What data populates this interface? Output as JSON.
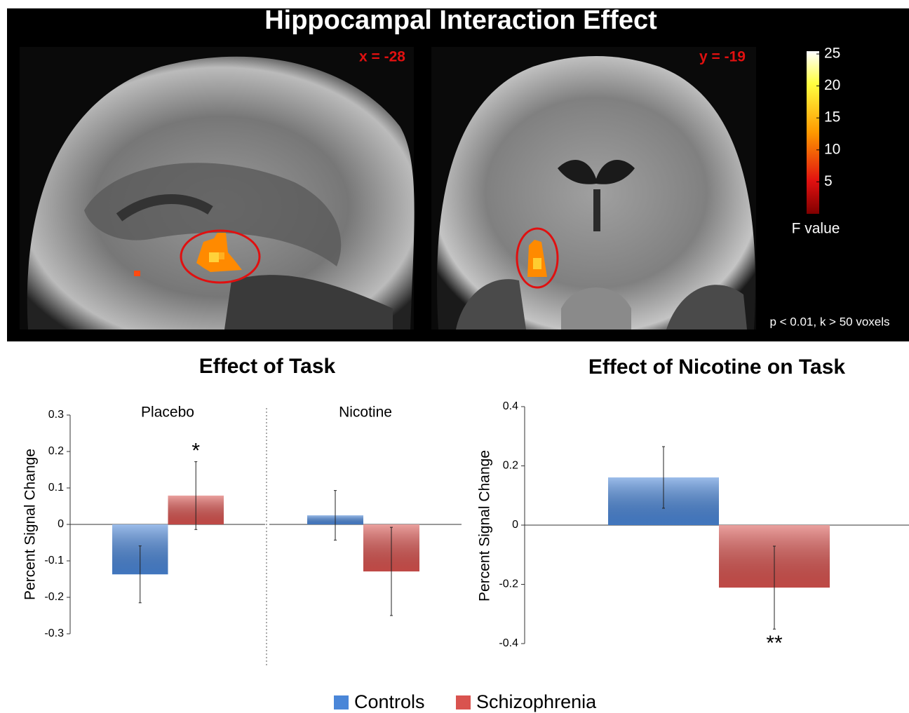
{
  "figure": {
    "title": "Hippocampal Interaction Effect",
    "slices": [
      {
        "label": "x = -28"
      },
      {
        "label": "y = -19"
      }
    ],
    "colorbar": {
      "lim": [
        0,
        25
      ],
      "ticks": [
        25,
        20,
        15,
        10,
        5
      ],
      "label": "F value"
    },
    "threshold": "p < 0.01, k > 50 voxels"
  },
  "chart_data": [
    {
      "type": "bar",
      "title": "Effect of Task",
      "ylabel": "Percent Signal Change",
      "categories": [
        "Placebo",
        "Nicotine"
      ],
      "ylim": [
        -0.3,
        0.3
      ],
      "yticks": [
        0.3,
        0.2,
        0.1,
        0,
        -0.1,
        -0.2,
        -0.3
      ],
      "series": [
        {
          "name": "Controls",
          "color": "#4a86d8",
          "values": [
            -0.137,
            0.025
          ],
          "errors": [
            0.078,
            0.068
          ],
          "significance": [
            null,
            null
          ]
        },
        {
          "name": "Schizophrenia",
          "color": "#d9534f",
          "values": [
            0.079,
            -0.129
          ],
          "errors": [
            0.093,
            0.121
          ],
          "significance": [
            "*",
            null
          ]
        }
      ]
    },
    {
      "type": "bar",
      "title": "Effect of Nicotine on Task",
      "ylabel": "Percent Signal Change",
      "categories": [
        null
      ],
      "ylim": [
        -0.4,
        0.4
      ],
      "yticks": [
        0.4,
        0.2,
        0,
        -0.2,
        -0.4
      ],
      "series": [
        {
          "color": "#4a86d8",
          "values": [
            0.161
          ],
          "errors": [
            0.104
          ],
          "significance": [
            null
          ]
        },
        {
          "color": "#d9534f",
          "values": [
            -0.211
          ],
          "errors": [
            0.14
          ],
          "significance": [
            "**"
          ]
        }
      ]
    }
  ]
}
